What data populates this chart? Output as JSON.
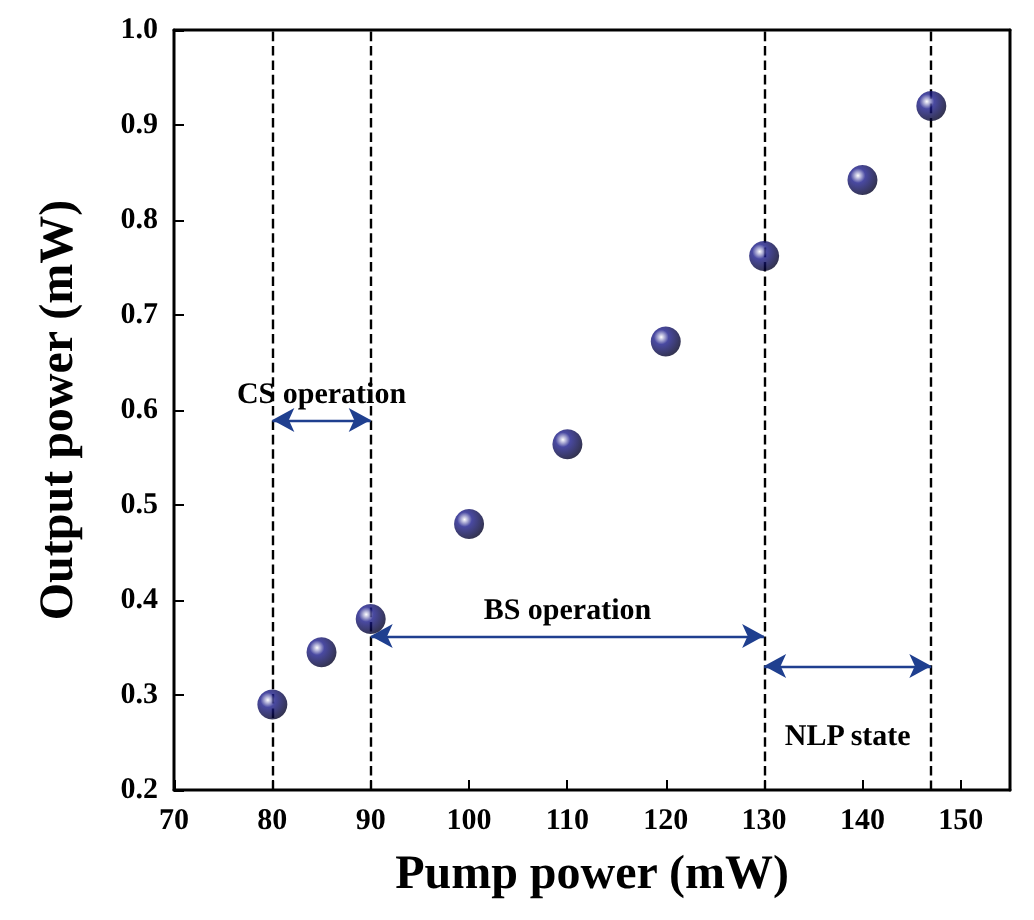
{
  "chart_data": {
    "type": "scatter",
    "xlabel": "Pump power (mW)",
    "ylabel": "Output power (mW)",
    "x": [
      80,
      85,
      90,
      100,
      110,
      120,
      130,
      140,
      147
    ],
    "series": [
      {
        "color": "#1c1c8a",
        "values": [
          0.29,
          0.345,
          0.38,
          0.48,
          0.564,
          0.672,
          0.762,
          0.842,
          0.92
        ]
      }
    ],
    "xlim": [
      70,
      155
    ],
    "xticks": [
      70,
      80,
      90,
      100,
      110,
      120,
      130,
      140,
      150
    ],
    "ylim": [
      0.2,
      1.0
    ],
    "yticks": [
      0.2,
      0.3,
      0.4,
      0.5,
      0.6,
      0.7,
      0.8,
      0.9,
      {
        "value": 1,
        "label": "1.0"
      }
    ],
    "ref_lines": [
      {
        "axis": "x",
        "value": 80,
        "line_style": "dashed",
        "color": "#000000"
      },
      {
        "axis": "x",
        "value": 90,
        "line_style": "dashed",
        "color": "#000000"
      },
      {
        "axis": "x",
        "value": 130,
        "line_style": "dashed",
        "color": "#000000"
      },
      {
        "axis": "x",
        "value": 147,
        "line_style": "dashed",
        "color": "#000000"
      }
    ],
    "annotations": [
      "CS operation",
      "BS operation",
      "NLP state"
    ],
    "marker": "circle",
    "grid": false
  }
}
